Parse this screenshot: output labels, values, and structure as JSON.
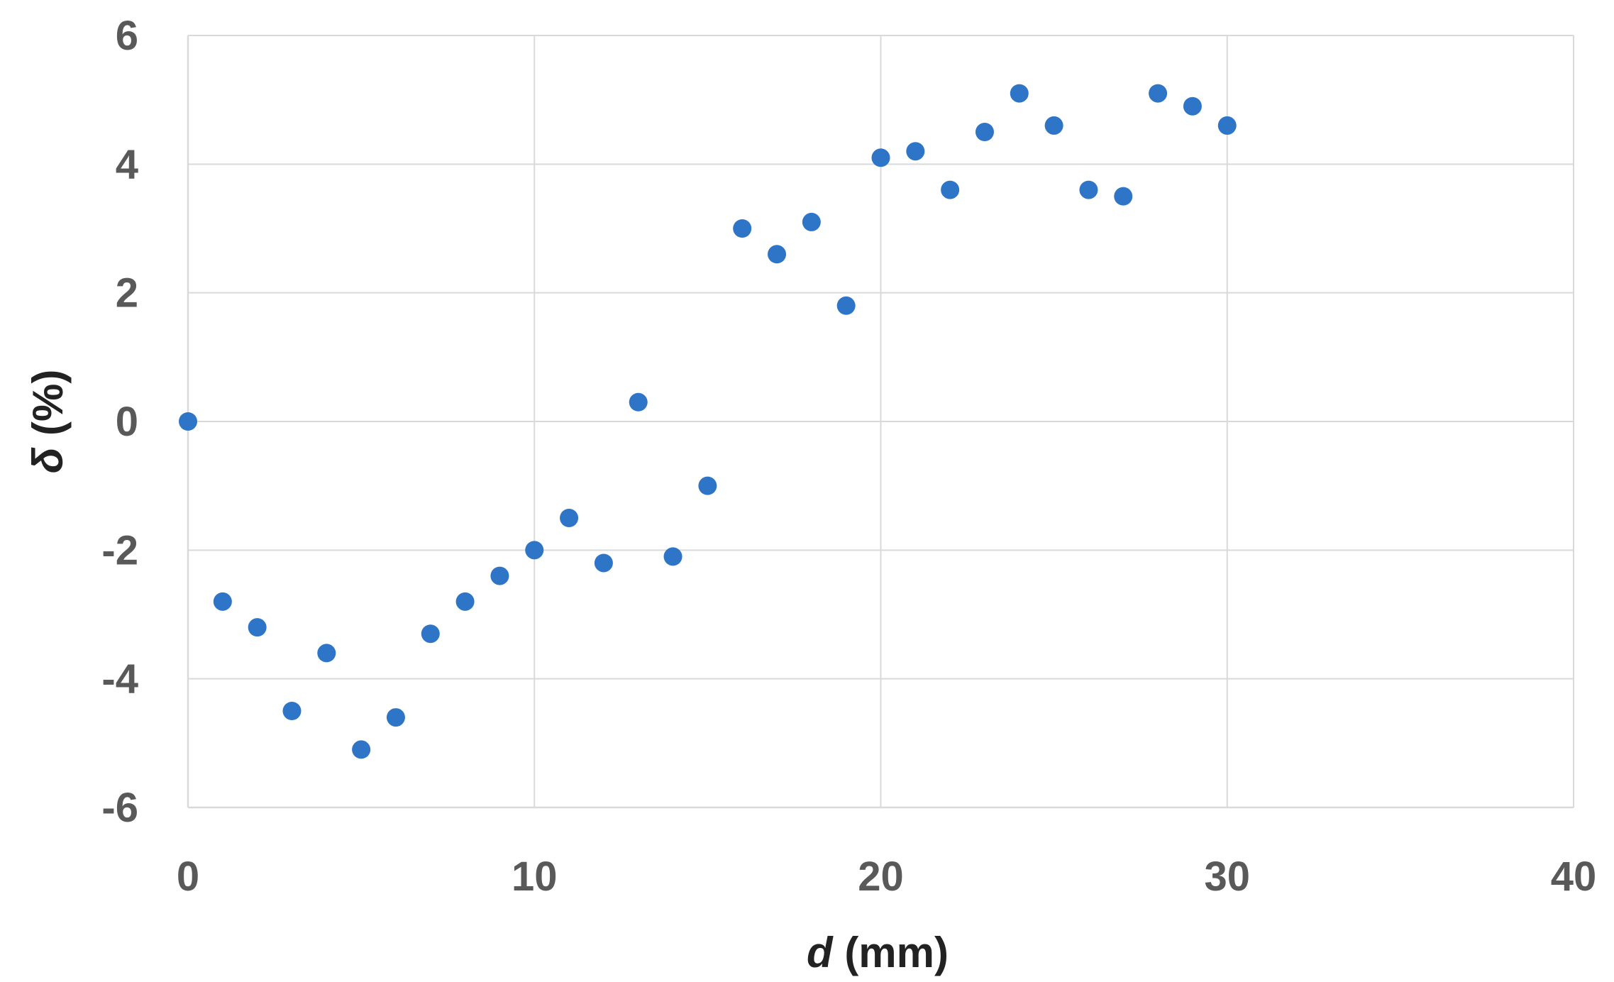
{
  "chart_data": {
    "type": "scatter",
    "xlabel_var": "d",
    "xlabel_unit": " (mm)",
    "ylabel_var": "δ",
    "ylabel_unit": " (%)",
    "xlim": [
      0,
      40
    ],
    "ylim": [
      -6,
      6
    ],
    "xticks": [
      "0",
      "10",
      "20",
      "30",
      "40"
    ],
    "yticks": [
      "6",
      "4",
      "2",
      "0",
      "-2",
      "-4",
      "-6"
    ],
    "grid": true,
    "legend": "none",
    "marker_color": "#2e75c8",
    "series": [
      {
        "x": [
          0,
          1,
          2,
          3,
          4,
          5,
          6,
          7,
          8,
          9,
          10,
          11,
          12,
          13,
          14,
          15,
          16,
          17,
          18,
          19,
          20,
          21,
          22,
          23,
          24,
          25,
          26,
          27,
          28,
          29,
          30
        ],
        "y": [
          0.0,
          -2.8,
          -3.2,
          -4.5,
          -3.6,
          -5.1,
          -4.6,
          -3.3,
          -2.8,
          -2.4,
          -2.0,
          -1.5,
          -2.2,
          0.3,
          -2.1,
          -1.0,
          3.0,
          2.6,
          3.1,
          1.8,
          4.1,
          4.2,
          3.6,
          4.5,
          5.1,
          4.6,
          3.6,
          3.5,
          5.1,
          4.9,
          4.6
        ]
      }
    ]
  }
}
